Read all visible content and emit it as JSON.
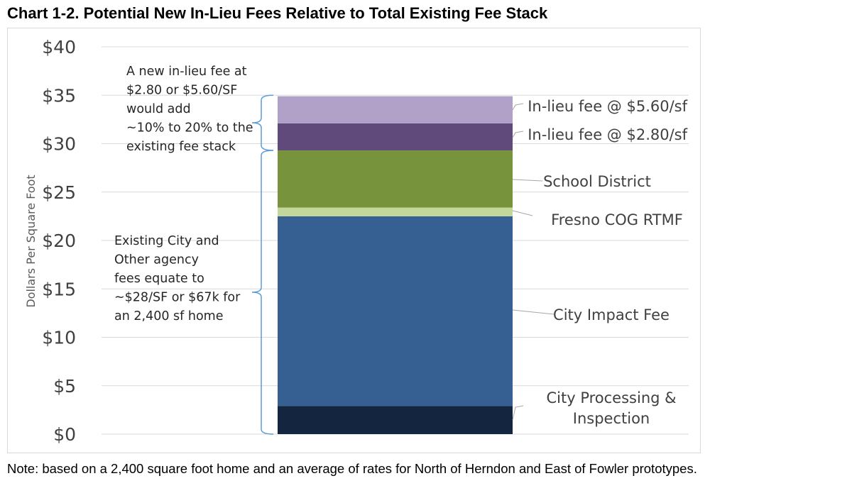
{
  "title": "Chart 1-2. Potential New In-Lieu Fees Relative to Total Existing Fee Stack",
  "note": "Note: based on a 2,400 square foot home and an average of rates for North of Herndon and East of Fowler prototypes.",
  "chart_data": {
    "type": "bar",
    "stacked": true,
    "ylabel": "Dollars Per Square Foot",
    "ylim": [
      0,
      40
    ],
    "ytick_step": 5,
    "ytick_labels": [
      "$0",
      "$5",
      "$10",
      "$15",
      "$20",
      "$25",
      "$30",
      "$35",
      "$40"
    ],
    "grid": true,
    "series": [
      {
        "name": "City Processing & Inspection",
        "label_lines": [
          "City Processing &",
          "Inspection"
        ],
        "value": 2.9,
        "color": "#13253f"
      },
      {
        "name": "City Impact Fee",
        "label_lines": [
          "City Impact Fee"
        ],
        "value": 19.6,
        "color": "#366092"
      },
      {
        "name": "Fresno COG RTMF",
        "label_lines": [
          "Fresno COG RTMF"
        ],
        "value": 0.9,
        "color": "#c4d79b"
      },
      {
        "name": "School District",
        "label_lines": [
          "School District"
        ],
        "value": 5.9,
        "color": "#77933c"
      },
      {
        "name": "In-lieu fee @ $2.80/sf",
        "label_lines": [
          "In-lieu fee @ $2.80/sf"
        ],
        "value": 2.8,
        "color": "#604a7b"
      },
      {
        "name": "In-lieu fee @ $5.60/sf",
        "label_lines": [
          "In-lieu fee @ $5.60/sf"
        ],
        "value": 2.8,
        "color": "#b1a0c7"
      }
    ],
    "annotations": [
      {
        "lines": [
          "A new in-lieu fee at",
          "$2.80 or $5.60/SF",
          "would add",
          "~10% to 20% to the",
          "existing fee stack"
        ],
        "range": [
          29.3,
          35.0
        ]
      },
      {
        "lines": [
          "Existing City and",
          "Other agency",
          "fees equate to",
          "~$28/SF or $67k for",
          "an 2,400 sf home"
        ],
        "range": [
          0,
          29.3
        ]
      }
    ]
  }
}
